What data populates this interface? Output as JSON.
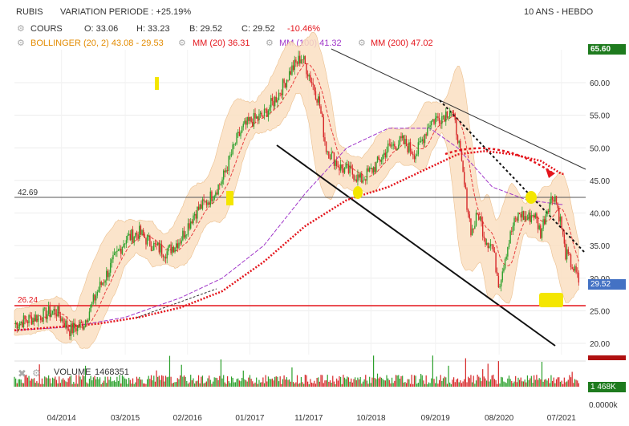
{
  "header": {
    "symbol": "RUBIS",
    "variation": "VARIATION PERIODE : +25.19%",
    "period": "10 ANS - HEBDO"
  },
  "ohlc": {
    "label": "COURS",
    "open": "O: 33.06",
    "high": "H: 33.23",
    "low": "B: 29.52",
    "close": "C: 29.52",
    "change": "-10.46%"
  },
  "indicators": {
    "bollinger": "BOLLINGER (20, 2) 43.08 - 29.53",
    "mm20": "MM (20) 36.31",
    "mm100": "MM (100) 41.32",
    "mm200": "MM (200) 47.02"
  },
  "volume": {
    "label": "VOLUME",
    "value": "1468351",
    "tag": "1 468K",
    "axis_zero": "0.0000k"
  },
  "price_tags": {
    "top": "65.60",
    "last": "29.52"
  },
  "levels": {
    "resistance": "42.69",
    "support": "26.24"
  },
  "colors": {
    "price_up": "#2ca02c",
    "price_down": "#d62728",
    "bollinger_fill": "#fbe0c2",
    "mm20": "#e4151c",
    "mm100": "#a036c9",
    "mm200": "#e4151c",
    "last_tag": "#4472c4",
    "top_tag": "#1e7b1e",
    "volume_tag": "#1e7b1e"
  },
  "chart_data": {
    "type": "line",
    "title": "RUBIS",
    "xlabel": "",
    "ylabel": "",
    "ylim": [
      18,
      68
    ],
    "x_ticks": [
      "04/2014",
      "03/2015",
      "02/2016",
      "01/2017",
      "11/2017",
      "10/2018",
      "09/2019",
      "08/2020",
      "07/2021"
    ],
    "y_ticks": [
      "20.00",
      "25.00",
      "30.00",
      "35.00",
      "40.00",
      "45.00",
      "50.00",
      "55.00",
      "60.00"
    ],
    "series": [
      {
        "name": "COURS",
        "x": [
          2013.6,
          2013.9,
          2014.2,
          2014.4,
          2014.6,
          2014.8,
          2015.0,
          2015.2,
          2015.4,
          2015.6,
          2015.8,
          2016.0,
          2016.2,
          2016.4,
          2016.6,
          2016.8,
          2016.9,
          2017.0,
          2017.2,
          2017.4,
          2017.6,
          2017.75,
          2017.9,
          2018.0,
          2018.1,
          2018.3,
          2018.5,
          2018.6,
          2018.8,
          2019.0,
          2019.2,
          2019.4,
          2019.6,
          2019.8,
          2019.9,
          2020.0,
          2020.1,
          2020.2,
          2020.3,
          2020.4,
          2020.5,
          2020.6,
          2020.7,
          2020.8,
          2020.9,
          2021.0,
          2021.1,
          2021.2,
          2021.3,
          2021.4,
          2021.5,
          2021.55,
          2021.65,
          2021.75
        ],
        "values": [
          23,
          24,
          25,
          22,
          23,
          28,
          32,
          36,
          37,
          35,
          34,
          36,
          40,
          42,
          45,
          51,
          53,
          54,
          55,
          58,
          62,
          64,
          60,
          57,
          50,
          47,
          46,
          45,
          47,
          50,
          51,
          49,
          54,
          55,
          56,
          52,
          44,
          37,
          40,
          36,
          35,
          29,
          34,
          38,
          40,
          39,
          40,
          37,
          41,
          43,
          38,
          34,
          32,
          29.52
        ]
      },
      {
        "name": "MM (200)",
        "x": [
          2013.6,
          2014.2,
          2014.8,
          2015.4,
          2016.0,
          2016.6,
          2017.2,
          2017.8,
          2018.4,
          2019.0,
          2019.6,
          2020.0,
          2020.4,
          2020.8,
          2021.2,
          2021.5
        ],
        "values": [
          22,
          22.5,
          23,
          24,
          25.5,
          28,
          32.5,
          38,
          42,
          44,
          47,
          49,
          49.5,
          49,
          48,
          46
        ]
      },
      {
        "name": "MM (100)",
        "x": [
          2013.6,
          2014.4,
          2015.2,
          2016.0,
          2016.6,
          2017.2,
          2017.8,
          2018.4,
          2019.0,
          2019.6,
          2020.0,
          2020.5,
          2021.0,
          2021.5
        ],
        "values": [
          22,
          22.5,
          24,
          27,
          30,
          35,
          43,
          50,
          53,
          53,
          50,
          44,
          42,
          41.3
        ]
      }
    ],
    "volume": {
      "last": 1468351
    },
    "annotations": [
      "42.69",
      "26.24"
    ]
  }
}
